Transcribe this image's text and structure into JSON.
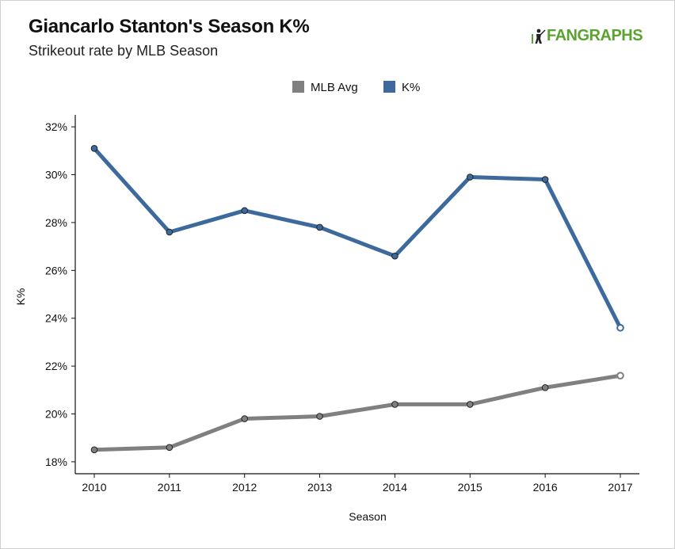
{
  "header": {
    "title": "Giancarlo Stanton's Season K%",
    "subtitle": "Strikeout rate by MLB Season",
    "logo_text": "FANGRAPHS"
  },
  "colors": {
    "mlb_avg": "#808080",
    "k_pct": "#3d6a9c",
    "logo": "#5aa32f"
  },
  "chart_data": {
    "type": "line",
    "title": "Giancarlo Stanton's Season K%",
    "subtitle": "Strikeout rate by MLB Season",
    "xlabel": "Season",
    "ylabel": "K%",
    "x": [
      2010,
      2011,
      2012,
      2013,
      2014,
      2015,
      2016,
      2017
    ],
    "x_tick_labels": [
      "2010",
      "2011",
      "2012",
      "2013",
      "2014",
      "2015",
      "2016",
      "2017"
    ],
    "ylim": [
      17.5,
      32.5
    ],
    "y_ticks": [
      18,
      20,
      22,
      24,
      26,
      28,
      30,
      32
    ],
    "y_tick_labels": [
      "18%",
      "20%",
      "22%",
      "24%",
      "26%",
      "28%",
      "30%",
      "32%"
    ],
    "grid": false,
    "legend_position": "top-center",
    "series": [
      {
        "name": "MLB Avg",
        "color": "#808080",
        "values": [
          18.5,
          18.6,
          19.8,
          19.9,
          20.4,
          20.4,
          21.1,
          21.6
        ]
      },
      {
        "name": "K%",
        "color": "#3d6a9c",
        "values": [
          31.1,
          27.6,
          28.5,
          27.8,
          26.6,
          29.9,
          29.8,
          23.6
        ]
      }
    ]
  }
}
